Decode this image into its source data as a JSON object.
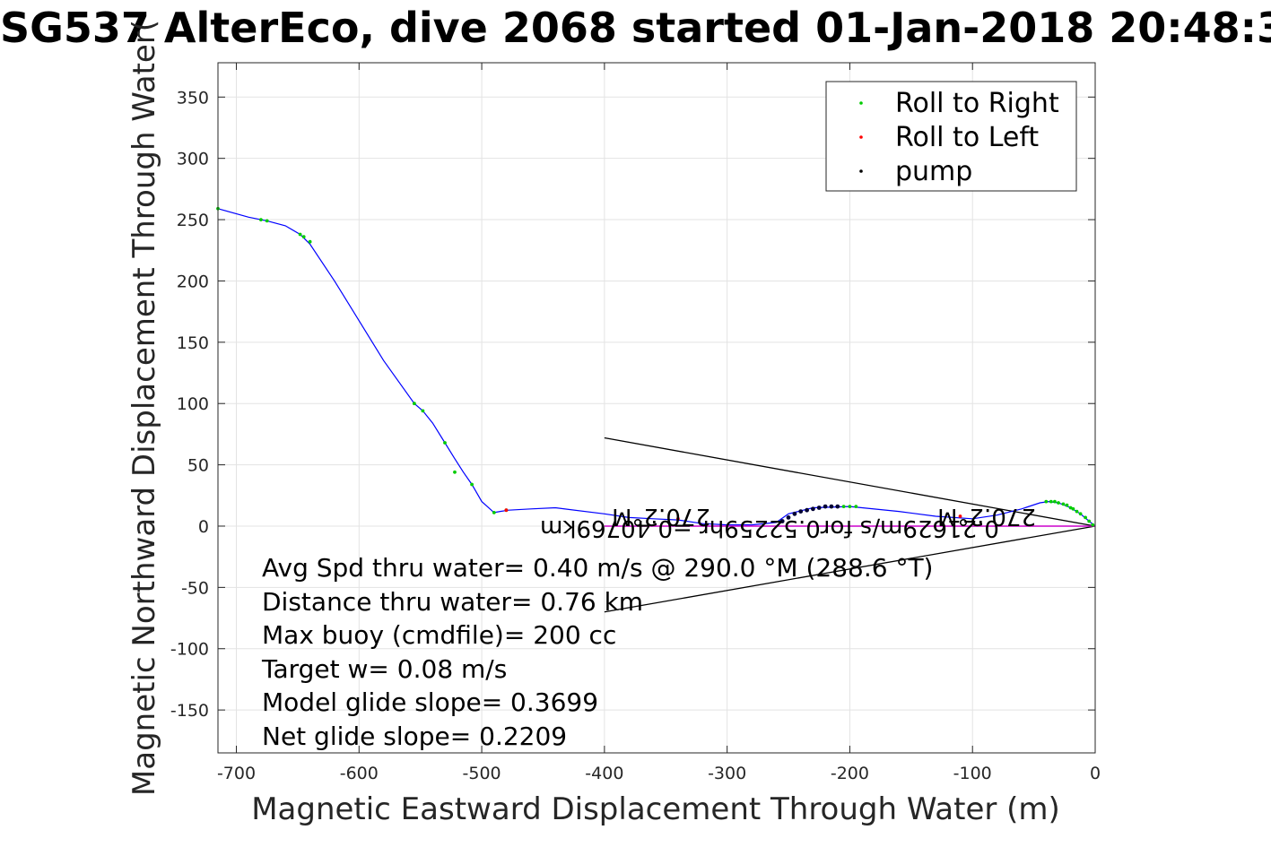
{
  "chart_data": {
    "type": "line",
    "title": "SG537 AlterEco, dive 2068 started 01-Jan-2018 20:48:3",
    "xlabel": "Magnetic Eastward Displacement Through Water (m)",
    "ylabel": "Magnetic Northward Displacement Through Water(",
    "xlim": [
      -715,
      0
    ],
    "ylim": [
      -185,
      378
    ],
    "xticks": [
      -700,
      -600,
      -500,
      -400,
      -300,
      -200,
      -100,
      0
    ],
    "yticks": [
      350,
      300,
      250,
      200,
      150,
      100,
      50,
      0,
      -50,
      -100,
      -150
    ],
    "grid": true,
    "legend_position": "top-right",
    "colors": {
      "track": "#0000ff",
      "roll_right": "#00cc00",
      "roll_left": "#ff0000",
      "pump": "#000033",
      "connector": "#cc00cc",
      "arrow": "#000000"
    },
    "series": [
      {
        "kind": "track",
        "x": [
          0,
          -5,
          -12,
          -20,
          -30,
          -38,
          -45,
          -60,
          -80,
          -100,
          -130,
          -160,
          -200,
          -230,
          -250,
          -260,
          -280,
          -300,
          -320,
          -340,
          -360,
          -380,
          -400,
          -440,
          -460,
          -478,
          -485,
          -490,
          -500,
          -508,
          -515,
          -522,
          -530,
          -540,
          -548,
          -555,
          -580,
          -620,
          -640,
          -648,
          -660,
          -675,
          -690,
          -715
        ],
        "y": [
          0,
          4,
          10,
          15,
          19,
          20,
          19,
          14,
          9,
          6,
          8,
          12,
          16,
          15,
          10,
          3,
          1,
          1,
          2,
          5,
          6,
          7,
          10,
          15,
          14,
          13,
          12,
          11,
          20,
          34,
          44,
          55,
          68,
          84,
          94,
          100,
          135,
          200,
          230,
          238,
          245,
          249,
          252,
          259
        ]
      },
      {
        "kind": "connector",
        "x": [
          0,
          -50,
          -100,
          -150,
          -200,
          -250,
          -300,
          -350,
          -400
        ],
        "y": [
          0,
          0,
          0,
          0,
          0,
          0,
          0,
          0,
          0
        ]
      }
    ],
    "legend": [
      {
        "label": "Roll to Right",
        "color": "#00cc00"
      },
      {
        "label": "Roll to Left",
        "color": "#ff0000"
      },
      {
        "label": "pump",
        "color": "#000000"
      }
    ],
    "roll_right_points": {
      "x": [
        -2,
        -5,
        -8,
        -12,
        -15,
        -18,
        -20,
        -23,
        -26,
        -30,
        -33,
        -36,
        -40,
        -195,
        -200,
        -205,
        -480,
        -490,
        -508,
        -522,
        -530,
        -548,
        -555,
        -640,
        -645,
        -648,
        -675,
        -680,
        -715
      ],
      "y": [
        1,
        4,
        7,
        10,
        12,
        14,
        15,
        17,
        18,
        19,
        20,
        20,
        20,
        16,
        16,
        16,
        13,
        11,
        34,
        44,
        68,
        94,
        100,
        232,
        236,
        238,
        249,
        250,
        259
      ]
    },
    "roll_left_points": {
      "x": [
        -110,
        -340,
        -480
      ],
      "y": [
        8,
        6,
        13
      ]
    },
    "pump_points": {
      "x": [
        -210,
        -215,
        -220,
        -225,
        -230,
        -235,
        -240,
        -245,
        -250,
        -255
      ],
      "y": [
        16,
        16,
        16,
        15,
        14,
        13,
        12,
        10,
        7,
        4
      ]
    },
    "arrows": [
      {
        "from": [
          0,
          0
        ],
        "to": [
          -400,
          72
        ]
      },
      {
        "from": [
          0,
          0
        ],
        "to": [
          -400,
          -70
        ]
      }
    ],
    "annotations": {
      "flipped_1": "270.2°M",
      "flipped_2": "270.2°M",
      "flipped_3": "0.21629m/s for0.52259hr =0.40769km"
    },
    "stats": [
      "Avg Spd thru water=  0.40 m/s @ 290.0 °M (288.6 °T)",
      "Distance thru water=  0.76 km",
      "Max buoy (cmdfile)= 200 cc",
      "Target w= 0.08 m/s",
      "Model glide slope= 0.3699",
      "Net glide slope= 0.2209"
    ]
  }
}
